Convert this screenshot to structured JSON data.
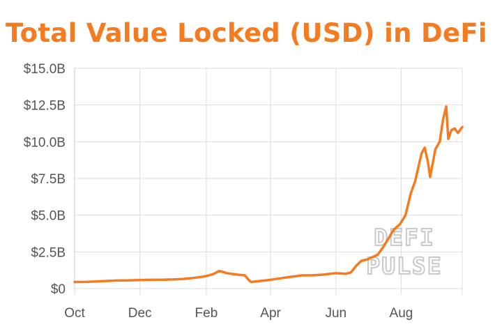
{
  "chart_data": {
    "type": "line",
    "title": "Total Value Locked (USD) in DeFi",
    "xlabel": "",
    "ylabel": "",
    "x_tick_labels": [
      "Oct",
      "Dec",
      "Feb",
      "Apr",
      "Jun",
      "Aug"
    ],
    "y_tick_labels": [
      "$0",
      "$2.5B",
      "$5.0B",
      "$7.5B",
      "$10.0B",
      "$12.5B",
      "$15.0B"
    ],
    "y_unit": "USD billions",
    "ylim": [
      0,
      15
    ],
    "xlim": [
      "2019-10-01",
      "2020-09-27"
    ],
    "grid": true,
    "legend": "none",
    "watermark": "DEFI PULSE",
    "series": [
      {
        "color": "#f47b20",
        "points": [
          [
            "2019-10-01",
            0.45
          ],
          [
            "2019-10-10",
            0.45
          ],
          [
            "2019-10-20",
            0.48
          ],
          [
            "2019-11-01",
            0.52
          ],
          [
            "2019-11-10",
            0.55
          ],
          [
            "2019-11-20",
            0.56
          ],
          [
            "2019-12-01",
            0.58
          ],
          [
            "2019-12-10",
            0.6
          ],
          [
            "2019-12-20",
            0.6
          ],
          [
            "2020-01-01",
            0.62
          ],
          [
            "2020-01-10",
            0.65
          ],
          [
            "2020-01-20",
            0.72
          ],
          [
            "2020-02-01",
            0.85
          ],
          [
            "2020-02-08",
            1.0
          ],
          [
            "2020-02-13",
            1.2
          ],
          [
            "2020-02-16",
            1.15
          ],
          [
            "2020-02-20",
            1.05
          ],
          [
            "2020-03-01",
            0.95
          ],
          [
            "2020-03-08",
            0.9
          ],
          [
            "2020-03-12",
            0.55
          ],
          [
            "2020-03-14",
            0.45
          ],
          [
            "2020-03-20",
            0.5
          ],
          [
            "2020-04-01",
            0.6
          ],
          [
            "2020-04-10",
            0.7
          ],
          [
            "2020-04-20",
            0.8
          ],
          [
            "2020-05-01",
            0.9
          ],
          [
            "2020-05-10",
            0.9
          ],
          [
            "2020-05-20",
            0.95
          ],
          [
            "2020-06-01",
            1.05
          ],
          [
            "2020-06-10",
            1.0
          ],
          [
            "2020-06-15",
            1.1
          ],
          [
            "2020-06-20",
            1.55
          ],
          [
            "2020-06-25",
            1.9
          ],
          [
            "2020-07-01",
            2.0
          ],
          [
            "2020-07-10",
            2.3
          ],
          [
            "2020-07-15",
            2.8
          ],
          [
            "2020-07-20",
            3.4
          ],
          [
            "2020-07-25",
            4.0
          ],
          [
            "2020-07-31",
            4.4
          ],
          [
            "2020-08-05",
            5.0
          ],
          [
            "2020-08-10",
            6.5
          ],
          [
            "2020-08-14",
            7.3
          ],
          [
            "2020-08-20",
            9.2
          ],
          [
            "2020-08-23",
            9.6
          ],
          [
            "2020-08-26",
            8.6
          ],
          [
            "2020-08-28",
            7.6
          ],
          [
            "2020-09-02",
            9.5
          ],
          [
            "2020-09-06",
            10.0
          ],
          [
            "2020-09-09",
            11.5
          ],
          [
            "2020-09-12",
            12.4
          ],
          [
            "2020-09-14",
            10.2
          ],
          [
            "2020-09-17",
            10.8
          ],
          [
            "2020-09-20",
            10.9
          ],
          [
            "2020-09-23",
            10.6
          ],
          [
            "2020-09-27",
            11.0
          ]
        ]
      }
    ]
  }
}
